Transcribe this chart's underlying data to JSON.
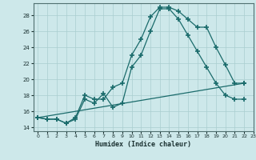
{
  "xlabel": "Humidex (Indice chaleur)",
  "bg_color": "#cde8ea",
  "grid_color": "#aacecf",
  "line_color": "#1a6b6b",
  "xlim": [
    -0.5,
    23
  ],
  "ylim": [
    13.5,
    29.5
  ],
  "yticks": [
    14,
    16,
    18,
    20,
    22,
    24,
    26,
    28
  ],
  "xticks": [
    0,
    1,
    2,
    3,
    4,
    5,
    6,
    7,
    8,
    9,
    10,
    11,
    12,
    13,
    14,
    15,
    16,
    17,
    18,
    19,
    20,
    21,
    22,
    23
  ],
  "line1_x": [
    0,
    1,
    2,
    3,
    4,
    5,
    6,
    7,
    8,
    9,
    10,
    11,
    12,
    13,
    14,
    15,
    16,
    17,
    18,
    19,
    20,
    21,
    22
  ],
  "line1_y": [
    15.2,
    15.0,
    15.0,
    14.5,
    15.2,
    18.0,
    17.5,
    17.5,
    19.0,
    19.5,
    23.0,
    25.0,
    27.8,
    29.0,
    29.0,
    28.5,
    27.5,
    26.5,
    26.5,
    24.0,
    21.8,
    19.5,
    19.5
  ],
  "line2_x": [
    0,
    1,
    2,
    3,
    4,
    5,
    6,
    7,
    8,
    9,
    10,
    11,
    12,
    13,
    14,
    15,
    16,
    17,
    18,
    19,
    20,
    21,
    22
  ],
  "line2_y": [
    15.2,
    15.0,
    15.0,
    14.5,
    15.0,
    17.5,
    17.0,
    18.2,
    16.5,
    17.0,
    21.5,
    23.0,
    26.0,
    28.8,
    28.8,
    27.5,
    25.5,
    23.5,
    21.5,
    19.5,
    18.0,
    17.5,
    17.5
  ],
  "line3_x": [
    0,
    22
  ],
  "line3_y": [
    15.2,
    19.5
  ]
}
